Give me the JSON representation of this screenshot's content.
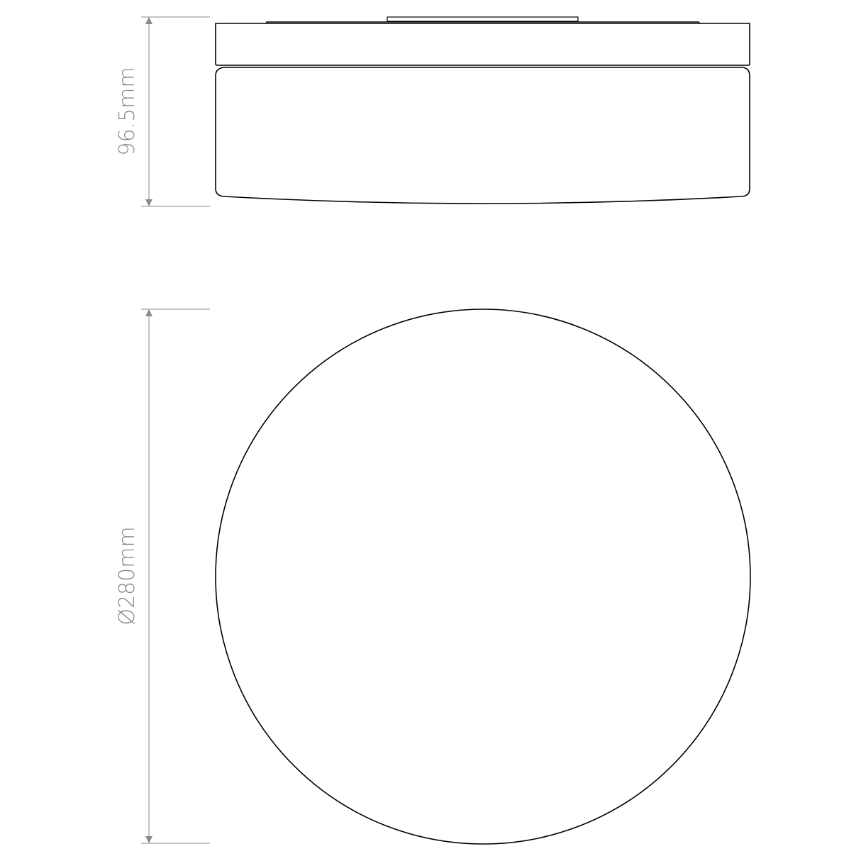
{
  "side_view": {
    "height_label": "96.5mm"
  },
  "top_view": {
    "diameter_label": "Ø280mm"
  },
  "colors": {
    "outline": "#000000",
    "dimension": "#8a8a8a"
  }
}
